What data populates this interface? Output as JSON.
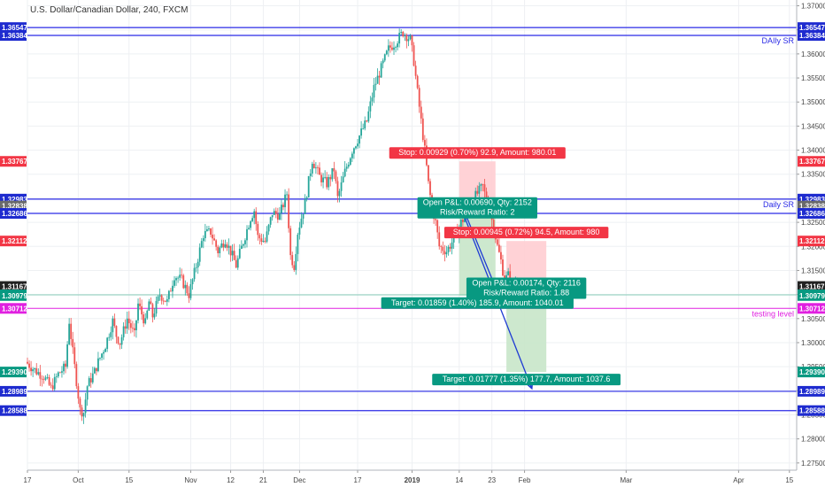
{
  "chart_data": {
    "type": "candlestick",
    "title": "U.S. Dollar/Canadian Dollar, 240, FXCM",
    "ylim": [
      1.2735,
      1.3712
    ],
    "y_ticks": [
      "1.37000",
      "1.36500",
      "1.36000",
      "1.35500",
      "1.35000",
      "1.34500",
      "1.34000",
      "1.33500",
      "1.33000",
      "1.32500",
      "1.32000",
      "1.31500",
      "1.31000",
      "1.30500",
      "1.30000",
      "1.29500",
      "1.29000",
      "1.28500",
      "1.28000",
      "1.27500"
    ],
    "x_ticks": [
      {
        "label": "17",
        "day": 0
      },
      {
        "label": "Oct",
        "day": 14
      },
      {
        "label": "15",
        "day": 28
      },
      {
        "label": "Nov",
        "day": 45
      },
      {
        "label": "12",
        "day": 56
      },
      {
        "label": "21",
        "day": 65
      },
      {
        "label": "Dec",
        "day": 75
      },
      {
        "label": "17",
        "day": 91
      },
      {
        "label": "2019",
        "day": 106
      },
      {
        "label": "14",
        "day": 119
      },
      {
        "label": "23",
        "day": 128
      },
      {
        "label": "Feb",
        "day": 137
      },
      {
        "label": "Mar",
        "day": 165
      },
      {
        "label": "Apr",
        "day": 196
      },
      {
        "label": "15",
        "day": 210
      }
    ],
    "x_range_days": [
      0,
      212
    ],
    "price_path": [
      [
        0,
        1.296
      ],
      [
        3,
        1.294
      ],
      [
        5,
        1.293
      ],
      [
        7,
        1.2905
      ],
      [
        9,
        1.2935
      ],
      [
        11,
        1.295
      ],
      [
        12,
        1.3045
      ],
      [
        13,
        1.298
      ],
      [
        14,
        1.292
      ],
      [
        15,
        1.286
      ],
      [
        16,
        1.2855
      ],
      [
        17,
        1.291
      ],
      [
        19,
        1.294
      ],
      [
        20,
        1.296
      ],
      [
        22,
        1.2995
      ],
      [
        24,
        1.3045
      ],
      [
        25,
        1.3015
      ],
      [
        26,
        1.3
      ],
      [
        28,
        1.305
      ],
      [
        30,
        1.3015
      ],
      [
        31,
        1.308
      ],
      [
        33,
        1.304
      ],
      [
        34,
        1.3085
      ],
      [
        35,
        1.3055
      ],
      [
        37,
        1.31
      ],
      [
        39,
        1.3085
      ],
      [
        41,
        1.314
      ],
      [
        43,
        1.313
      ],
      [
        45,
        1.31
      ],
      [
        47,
        1.316
      ],
      [
        49,
        1.3225
      ],
      [
        51,
        1.323
      ],
      [
        53,
        1.319
      ],
      [
        55,
        1.3215
      ],
      [
        57,
        1.318
      ],
      [
        58,
        1.316
      ],
      [
        60,
        1.321
      ],
      [
        62,
        1.326
      ],
      [
        63,
        1.3275
      ],
      [
        64,
        1.322
      ],
      [
        66,
        1.321
      ],
      [
        68,
        1.327
      ],
      [
        70,
        1.3265
      ],
      [
        72,
        1.331
      ],
      [
        73,
        1.318
      ],
      [
        74,
        1.316
      ],
      [
        75,
        1.323
      ],
      [
        77,
        1.329
      ],
      [
        79,
        1.338
      ],
      [
        81,
        1.3345
      ],
      [
        83,
        1.333
      ],
      [
        85,
        1.336
      ],
      [
        86,
        1.33
      ],
      [
        88,
        1.3355
      ],
      [
        90,
        1.34
      ],
      [
        92,
        1.343
      ],
      [
        94,
        1.346
      ],
      [
        96,
        1.353
      ],
      [
        98,
        1.357
      ],
      [
        100,
        1.361
      ],
      [
        102,
        1.3625
      ],
      [
        104,
        1.3645
      ],
      [
        106,
        1.363
      ],
      [
        107,
        1.3585
      ],
      [
        108,
        1.352
      ],
      [
        109,
        1.346
      ],
      [
        110,
        1.34
      ],
      [
        111,
        1.333
      ],
      [
        112,
        1.328
      ],
      [
        113,
        1.325
      ],
      [
        114,
        1.32
      ],
      [
        116,
        1.319
      ],
      [
        118,
        1.3215
      ],
      [
        120,
        1.325
      ],
      [
        122,
        1.327
      ],
      [
        124,
        1.3305
      ],
      [
        126,
        1.3325
      ],
      [
        127,
        1.3295
      ],
      [
        128,
        1.327
      ],
      [
        129,
        1.324
      ],
      [
        130,
        1.32
      ],
      [
        131,
        1.317
      ],
      [
        132,
        1.313
      ],
      [
        133,
        1.314
      ],
      [
        134,
        1.312
      ],
      [
        135,
        1.3125
      ]
    ],
    "horizontal_levels": [
      {
        "price": 1.36547,
        "color": "#2a2ae6",
        "width": 1.2,
        "label": ""
      },
      {
        "price": 1.36384,
        "color": "#2a2ae6",
        "width": 1.2,
        "label": "DAIly SR"
      },
      {
        "price": 1.32983,
        "color": "#2a2ae6",
        "width": 1.2,
        "label": "Daily SR"
      },
      {
        "price": 1.32686,
        "color": "#2a2ae6",
        "width": 1.2,
        "label": ""
      },
      {
        "price": 1.30993,
        "color": "#63bfa5",
        "width": 0.8,
        "label": ""
      },
      {
        "price": 1.30712,
        "color": "#e020e0",
        "width": 1.0,
        "label": "testing level"
      },
      {
        "price": 1.28989,
        "color": "#2a2ae6",
        "width": 1.2,
        "label": ""
      },
      {
        "price": 1.28588,
        "color": "#2a2ae6",
        "width": 1.2,
        "label": ""
      }
    ],
    "axis_badges": [
      {
        "price": 1.36547,
        "label": "1.36547",
        "color": "#1e2bcf"
      },
      {
        "price": 1.36384,
        "label": "1.36384",
        "color": "#1e2bcf"
      },
      {
        "price": 1.33767,
        "label": "1.33767",
        "color": "#f23645"
      },
      {
        "price": 1.32983,
        "label": "1.32983",
        "color": "#1e2bcf"
      },
      {
        "price": 1.32838,
        "label": "1.32838",
        "color": "#6a6a6a"
      },
      {
        "price": 1.32686,
        "label": "1.32686",
        "color": "#1e2bcf"
      },
      {
        "price": 1.32112,
        "label": "1.32112",
        "color": "#f23645"
      },
      {
        "price": 1.31167,
        "label": "1.31167",
        "color": "#222222"
      },
      {
        "price": 1.30993,
        "label": "1.30993",
        "color": "#089981"
      },
      {
        "price": 1.30979,
        "label": "1.30979",
        "color": "#089981"
      },
      {
        "price": 1.30712,
        "label": "1.30712",
        "color": "#e020e0"
      },
      {
        "price": 1.2939,
        "label": "1.29390",
        "color": "#089981"
      },
      {
        "price": 1.28989,
        "label": "1.28989",
        "color": "#1e2bcf"
      },
      {
        "price": 1.28588,
        "label": "1.28588",
        "color": "#1e2bcf"
      }
    ],
    "positions": [
      {
        "day_start": 119,
        "day_end": 129,
        "entry": 1.32838,
        "stop": 1.33767,
        "target": 1.30979,
        "arrow_from": [
          121,
          1.3262
        ],
        "arrow_to": [
          129,
          1.3115
        ],
        "stop_label": "Stop: 0.00929 (0.70%) 92.9, Amount: 980.01",
        "pl_label_1": "Open P&L: 0.00690, Qty: 2152",
        "pl_label_2": "Risk/Reward Ratio: 2",
        "target_label": "Target: 0.01859 (1.40%) 185.9, Amount: 1040.01"
      },
      {
        "day_start": 132,
        "day_end": 143,
        "entry": 1.31167,
        "stop": 1.32112,
        "target": 1.2939,
        "arrow_from": [
          120,
          1.327
        ],
        "arrow_to": [
          139,
          1.2905
        ],
        "stop_label": "Stop: 0.00945 (0.72%) 94.5, Amount: 980",
        "pl_label_1": "Open P&L: 0.00174, Qty: 2116",
        "pl_label_2": "Risk/Reward Ratio: 1.88",
        "target_label": "Target: 0.01777 (1.35%) 177.7, Amount: 1037.6"
      }
    ],
    "colors": {
      "up": "#26a69a",
      "down": "#ef5350",
      "long_profit": "#c8e6c9",
      "long_loss": "#ffcdd2",
      "stop_badge": "#f23645",
      "target_badge": "#089981",
      "arrow": "#1e3ad4",
      "grid": "#eef0f3"
    }
  }
}
